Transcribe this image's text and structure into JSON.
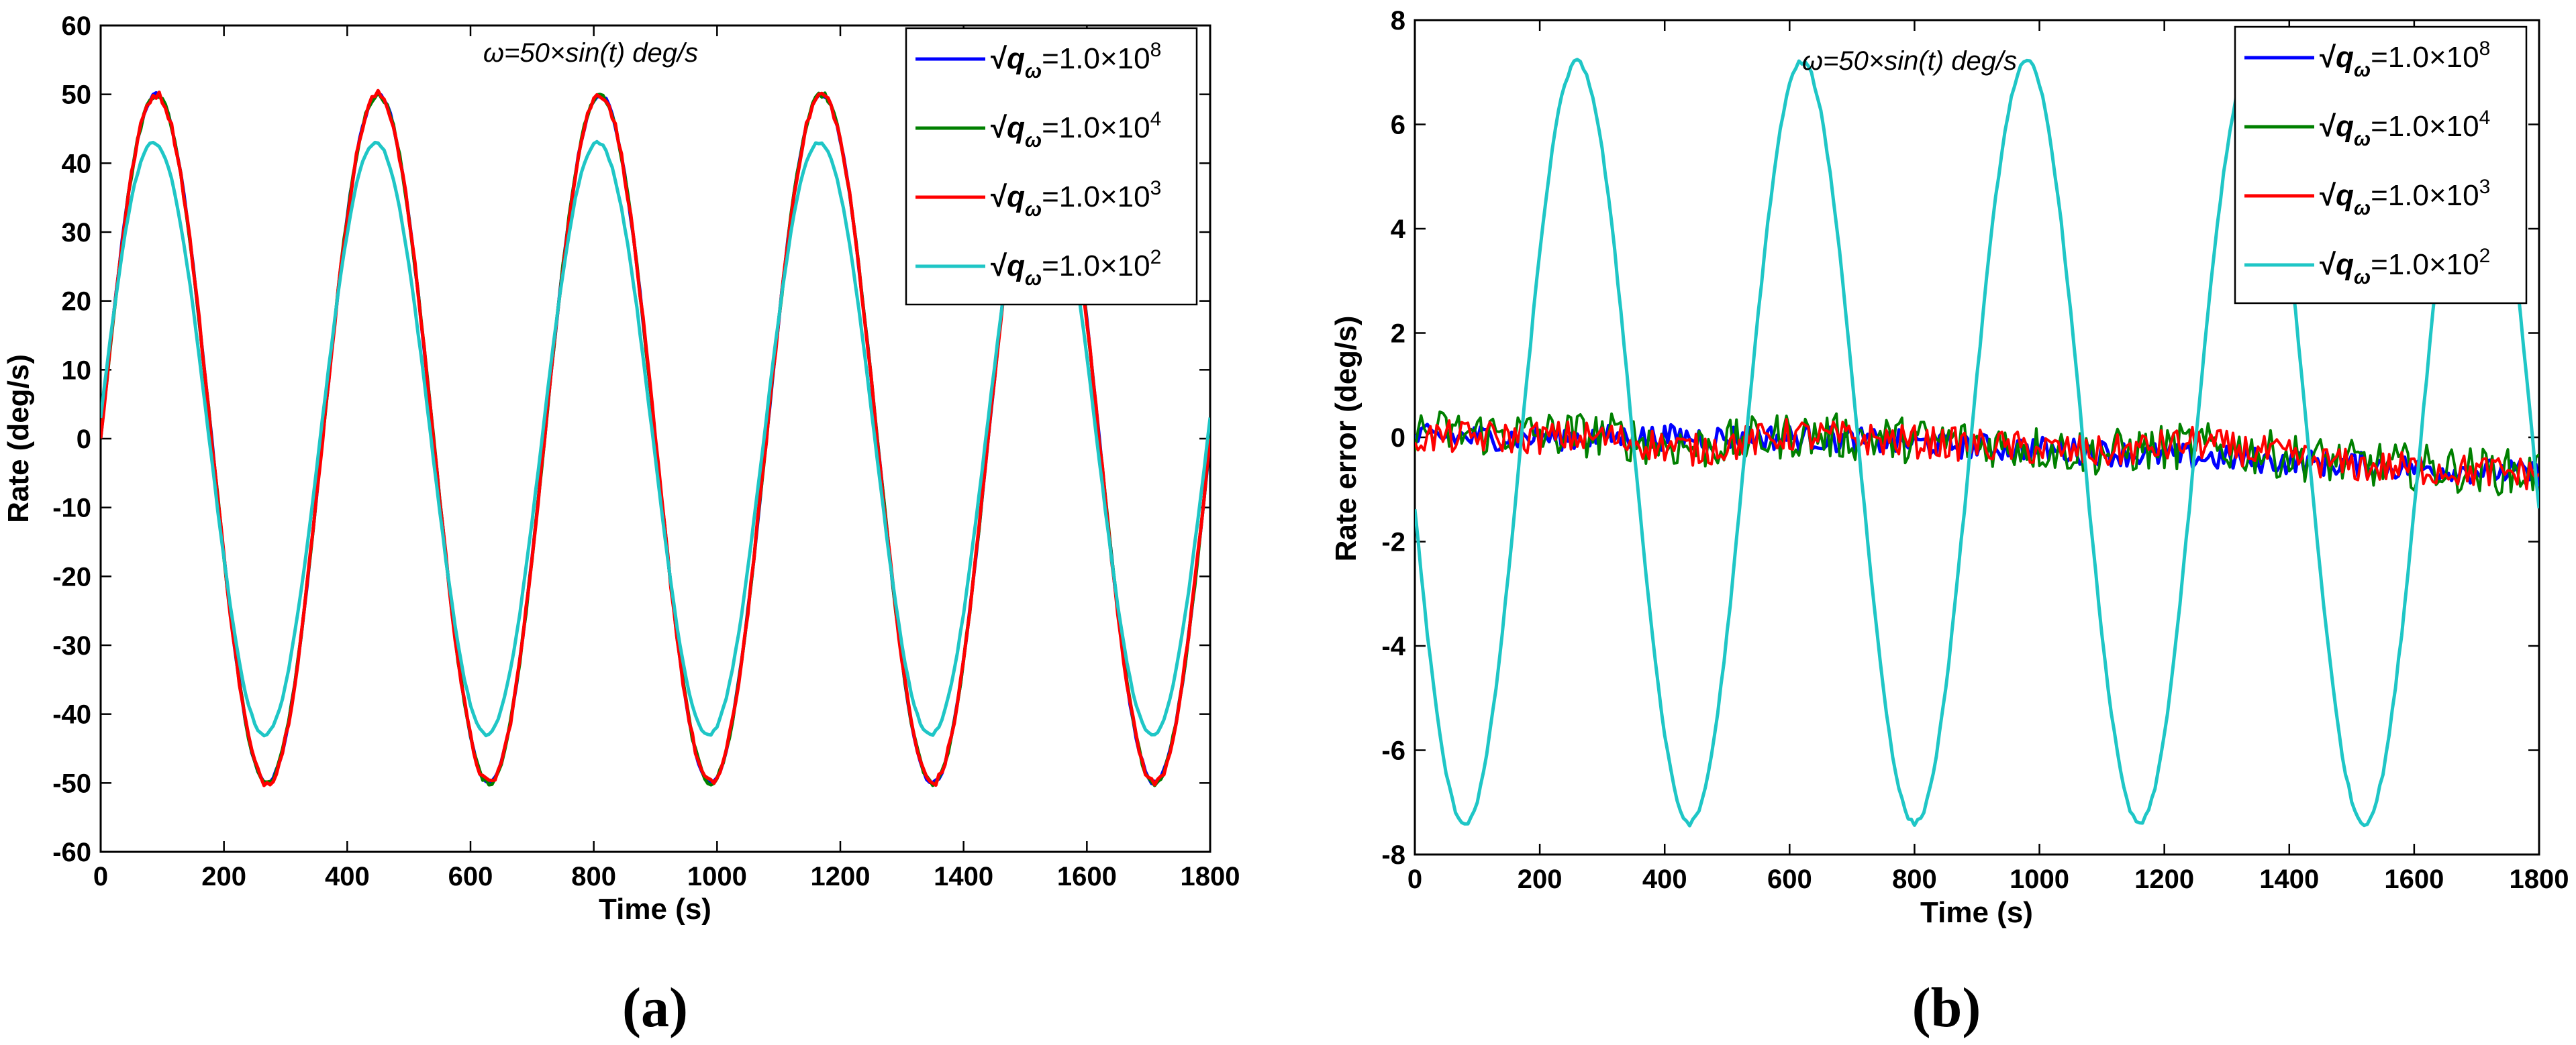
{
  "colors": {
    "blue": "#0000ff",
    "green": "#008000",
    "red": "#ff0000",
    "cyan": "#1fc6c6"
  },
  "chart_data": [
    {
      "type": "line",
      "panel_label": "(a)",
      "annotation": "ω=50×sin(t) deg/s",
      "xlabel": "Time (s)",
      "ylabel": "Rate (deg/s)",
      "xlim": [
        0,
        1800
      ],
      "ylim": [
        -60,
        60
      ],
      "xticks": [
        0,
        200,
        400,
        600,
        800,
        1000,
        1200,
        1400,
        1600,
        1800
      ],
      "yticks": [
        -60,
        -50,
        -40,
        -30,
        -20,
        -10,
        0,
        10,
        20,
        30,
        40,
        50,
        60
      ],
      "x_step": 5,
      "series": [
        {
          "name_root": "√",
          "name_q": "q",
          "name_sub": "ω",
          "name_rest": "=1.0×10",
          "name_exp": "8",
          "color": "blue",
          "model": {
            "kind": "sine",
            "amp": 50,
            "period": 360,
            "phase": 0,
            "offset": 0,
            "noise": 0.3
          }
        },
        {
          "name_root": "√",
          "name_q": "q",
          "name_sub": "ω",
          "name_rest": "=1.0×10",
          "name_exp": "4",
          "color": "green",
          "model": {
            "kind": "sine",
            "amp": 50,
            "period": 360,
            "phase": 0,
            "offset": 0,
            "noise": 0.4
          }
        },
        {
          "name_root": "√",
          "name_q": "q",
          "name_sub": "ω",
          "name_rest": "=1.0×10",
          "name_exp": "3",
          "color": "red",
          "model": {
            "kind": "sine",
            "amp": 50,
            "period": 360,
            "phase": 0,
            "offset": 0,
            "noise": 0.6
          }
        },
        {
          "name_root": "√",
          "name_q": "q",
          "name_sub": "ω",
          "name_rest": "=1.0×10",
          "name_exp": "2",
          "color": "cyan",
          "model": {
            "kind": "sine",
            "amp": 43,
            "period": 360,
            "phase": -4,
            "offset": 0,
            "noise": 0.2
          }
        }
      ]
    },
    {
      "type": "line",
      "panel_label": "(b)",
      "annotation": "ω=50×sin(t) deg/s",
      "xlabel": "Time (s)",
      "ylabel": "Rate error (deg/s)",
      "xlim": [
        0,
        1800
      ],
      "ylim": [
        -8,
        8
      ],
      "xticks": [
        0,
        200,
        400,
        600,
        800,
        1000,
        1200,
        1400,
        1600,
        1800
      ],
      "yticks": [
        -8,
        -6,
        -4,
        -2,
        0,
        2,
        4,
        6,
        8
      ],
      "x_step": 5,
      "series": [
        {
          "name_root": "√",
          "name_q": "q",
          "name_sub": "ω",
          "name_rest": "=1.0×10",
          "name_exp": "8",
          "color": "blue",
          "model": {
            "kind": "drift",
            "points": [
              [
                0,
                0
              ],
              [
                600,
                0
              ],
              [
                1800,
                -0.7
              ]
            ],
            "noise": 0.25
          }
        },
        {
          "name_root": "√",
          "name_q": "q",
          "name_sub": "ω",
          "name_rest": "=1.0×10",
          "name_exp": "4",
          "color": "green",
          "model": {
            "kind": "drift",
            "points": [
              [
                0,
                0.1
              ],
              [
                300,
                0.05
              ],
              [
                450,
                -0.2
              ],
              [
                600,
                0.05
              ],
              [
                900,
                -0.1
              ],
              [
                1100,
                -0.3
              ],
              [
                1250,
                -0.15
              ],
              [
                1500,
                -0.5
              ],
              [
                1800,
                -0.7
              ]
            ],
            "noise": 0.45
          }
        },
        {
          "name_root": "√",
          "name_q": "q",
          "name_sub": "ω",
          "name_rest": "=1.0×10",
          "name_exp": "3",
          "color": "red",
          "model": {
            "kind": "drift",
            "points": [
              [
                0,
                0
              ],
              [
                300,
                0.0
              ],
              [
                450,
                -0.25
              ],
              [
                600,
                0.05
              ],
              [
                900,
                -0.15
              ],
              [
                1100,
                -0.3
              ],
              [
                1250,
                -0.1
              ],
              [
                1500,
                -0.55
              ],
              [
                1800,
                -0.7
              ]
            ],
            "noise": 0.32
          }
        },
        {
          "name_root": "√",
          "name_q": "q",
          "name_sub": "ω",
          "name_rest": "=1.0×10",
          "name_exp": "2",
          "color": "cyan",
          "model": {
            "kind": "sine",
            "amp": -7.3,
            "period": 360,
            "phase": -10,
            "offset": -0.1,
            "noise": 0.05
          }
        }
      ]
    }
  ]
}
